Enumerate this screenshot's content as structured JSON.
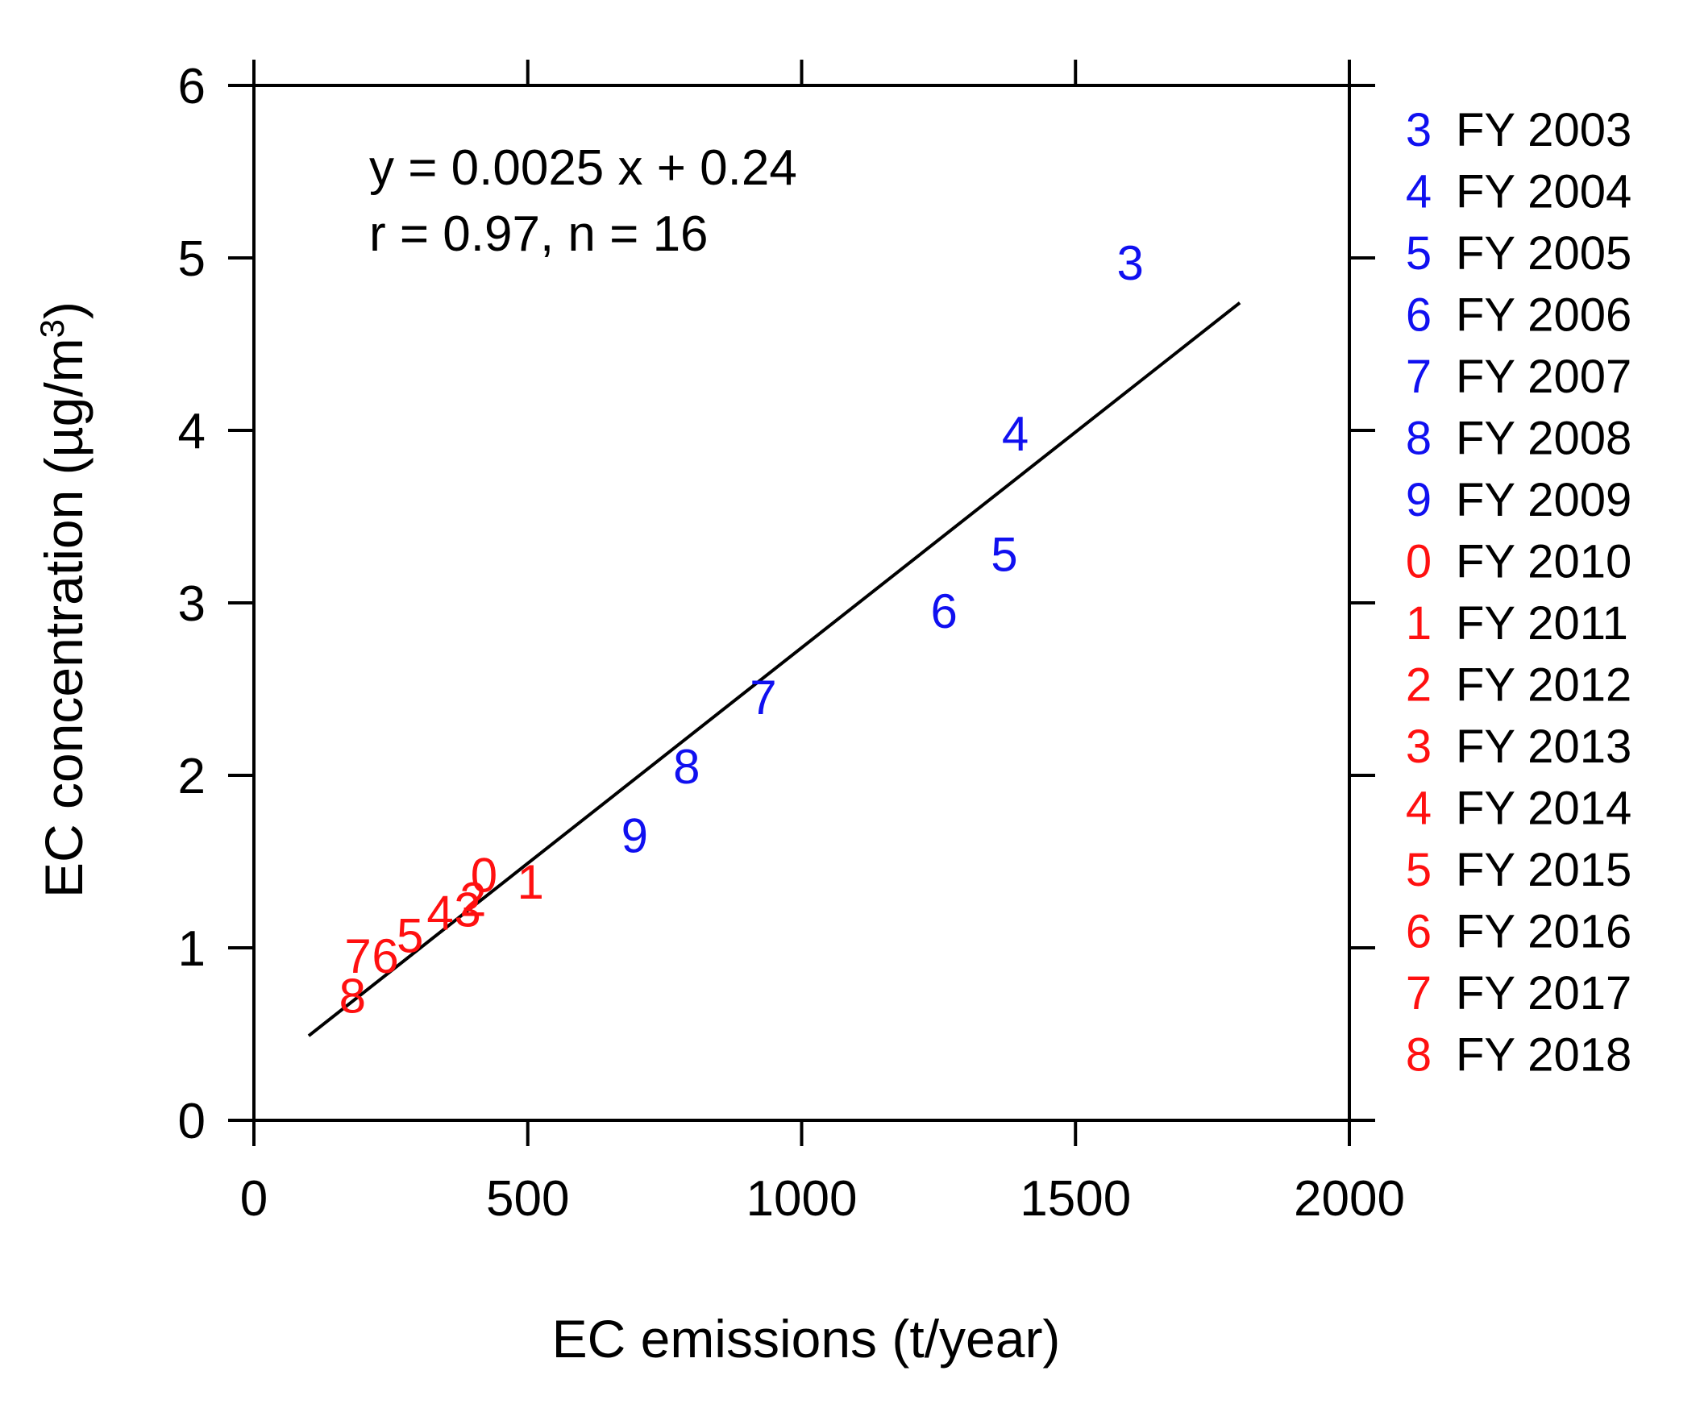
{
  "chart_data": {
    "type": "scatter",
    "title": "",
    "xlabel": "EC emissions (t/year)",
    "ylabel": "EC concentration (µg/m³)",
    "ylabel_main": "EC concentration (µg/m",
    "ylabel_sup": "3",
    "ylabel_close": ")",
    "xlim": [
      0,
      2000
    ],
    "ylim": [
      0,
      6
    ],
    "xticks": [
      0,
      500,
      1000,
      1500,
      2000
    ],
    "yticks": [
      0,
      1,
      2,
      3,
      4,
      5,
      6
    ],
    "xtick_labels": [
      "0",
      "500",
      "1000",
      "1500",
      "2000"
    ],
    "ytick_labels": [
      "0",
      "1",
      "2",
      "3",
      "4",
      "5",
      "6"
    ],
    "grid": false,
    "legend_position": "right",
    "colors": {
      "early": "#1010f0",
      "late": "#ff1010",
      "line": "#000000"
    },
    "points": [
      {
        "symbol": "3",
        "fy": "FY 2003",
        "x": 1600,
        "y": 4.97,
        "group": "early"
      },
      {
        "symbol": "4",
        "fy": "FY 2004",
        "x": 1390,
        "y": 3.98,
        "group": "early"
      },
      {
        "symbol": "5",
        "fy": "FY 2005",
        "x": 1370,
        "y": 3.28,
        "group": "early"
      },
      {
        "symbol": "6",
        "fy": "FY 2006",
        "x": 1260,
        "y": 2.95,
        "group": "early"
      },
      {
        "symbol": "7",
        "fy": "FY 2007",
        "x": 930,
        "y": 2.45,
        "group": "early"
      },
      {
        "symbol": "8",
        "fy": "FY 2008",
        "x": 790,
        "y": 2.05,
        "group": "early"
      },
      {
        "symbol": "9",
        "fy": "FY 2009",
        "x": 695,
        "y": 1.65,
        "group": "early"
      },
      {
        "symbol": "0",
        "fy": "FY 2010",
        "x": 420,
        "y": 1.42,
        "group": "late"
      },
      {
        "symbol": "1",
        "fy": "FY 2011",
        "x": 505,
        "y": 1.38,
        "group": "late"
      },
      {
        "symbol": "2",
        "fy": "FY 2012",
        "x": 400,
        "y": 1.28,
        "group": "late"
      },
      {
        "symbol": "3",
        "fy": "FY 2013",
        "x": 390,
        "y": 1.22,
        "group": "late"
      },
      {
        "symbol": "4",
        "fy": "FY 2014",
        "x": 340,
        "y": 1.2,
        "group": "late"
      },
      {
        "symbol": "5",
        "fy": "FY 2015",
        "x": 285,
        "y": 1.07,
        "group": "late"
      },
      {
        "symbol": "6",
        "fy": "FY 2016",
        "x": 240,
        "y": 0.95,
        "group": "late"
      },
      {
        "symbol": "7",
        "fy": "FY 2017",
        "x": 190,
        "y": 0.95,
        "group": "late"
      },
      {
        "symbol": "8",
        "fy": "FY 2018",
        "x": 180,
        "y": 0.72,
        "group": "late"
      }
    ],
    "regression": {
      "slope": 0.0025,
      "intercept": 0.24,
      "x_start": 100,
      "x_end": 1800
    },
    "annotations": [
      "y = 0.0025 x + 0.24",
      "r = 0.97, n = 16"
    ]
  }
}
